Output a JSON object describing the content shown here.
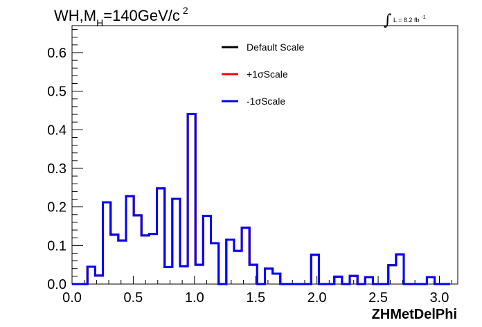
{
  "chart_data": {
    "type": "line",
    "title_parts": {
      "main": "WH,M",
      "sub": "H",
      "rest": "=140GeV/c",
      "sup": "2"
    },
    "luminosity": {
      "symbol": "∫",
      "text": "L = 8.2 fb",
      "sup": "-1"
    },
    "xlabel": "ZHMetDelPhi",
    "ylabel": "",
    "xlim": [
      0,
      3.15
    ],
    "ylim": [
      0,
      0.67
    ],
    "x_ticks": [
      0.0,
      0.5,
      1.0,
      1.5,
      2.0,
      2.5,
      3.0
    ],
    "x_tick_labels": [
      "0.0",
      "0.5",
      "1.0",
      "1.5",
      "2.0",
      "2.5",
      "3.0"
    ],
    "y_ticks": [
      0.0,
      0.1,
      0.2,
      0.3,
      0.4,
      0.5,
      0.6
    ],
    "y_tick_labels": [
      "0.0",
      "0.1",
      "0.2",
      "0.3",
      "0.4",
      "0.5",
      "0.6"
    ],
    "legend_placement": "top-center",
    "bin_width": 0.063,
    "bin_edges_start": 0.0,
    "series": [
      {
        "name": "Default Scale",
        "color": "#000000",
        "values": [
          0,
          0,
          0.045,
          0.022,
          0.212,
          0.128,
          0.113,
          0.228,
          0.178,
          0.126,
          0.13,
          0.248,
          0.044,
          0.221,
          0.046,
          0.441,
          0.05,
          0.177,
          0.106,
          0,
          0.115,
          0.086,
          0.146,
          0.05,
          0,
          0.04,
          0.027,
          0,
          0,
          0,
          0,
          0.076,
          0,
          0,
          0.019,
          0,
          0.021,
          0,
          0.018,
          0,
          0,
          0.049,
          0.077,
          0,
          0,
          0,
          0.018,
          0,
          0
        ]
      },
      {
        "name": "+1σScale",
        "color": "#ff0000",
        "values": [
          0,
          0,
          0.045,
          0.022,
          0.212,
          0.128,
          0.113,
          0.228,
          0.178,
          0.126,
          0.13,
          0.248,
          0.044,
          0.221,
          0.046,
          0.441,
          0.05,
          0.177,
          0.106,
          0,
          0.115,
          0.086,
          0.146,
          0.05,
          0,
          0.04,
          0.027,
          0,
          0,
          0,
          0,
          0.076,
          0,
          0,
          0.019,
          0,
          0.021,
          0,
          0.018,
          0,
          0,
          0.049,
          0.077,
          0,
          0,
          0,
          0.018,
          0,
          0
        ]
      },
      {
        "name": "-1σScale",
        "color": "#0000ff",
        "values": [
          0,
          0,
          0.045,
          0.022,
          0.212,
          0.128,
          0.113,
          0.228,
          0.178,
          0.126,
          0.13,
          0.248,
          0.044,
          0.221,
          0.046,
          0.441,
          0.05,
          0.177,
          0.106,
          0,
          0.115,
          0.086,
          0.146,
          0.05,
          0,
          0.04,
          0.027,
          0,
          0,
          0,
          0,
          0.076,
          0,
          0,
          0.019,
          0,
          0.021,
          0,
          0.018,
          0,
          0,
          0.049,
          0.077,
          0,
          0,
          0,
          0.018,
          0,
          0
        ]
      }
    ]
  }
}
